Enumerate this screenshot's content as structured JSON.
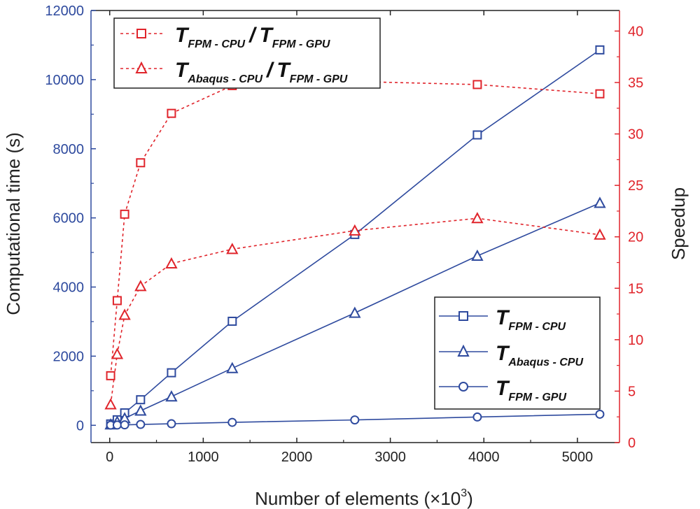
{
  "chart_data": {
    "type": "line",
    "xlabel": "Number of elements (×10",
    "xlabel_sup": "3",
    "xlabel_close": ")",
    "ylabel_left": "Computational time (s)",
    "ylabel_right": "Speedup",
    "xlim": [
      -200,
      5450
    ],
    "ylim_left": [
      -500,
      12000
    ],
    "ylim_right": [
      0,
      42
    ],
    "x_ticks": [
      0,
      1000,
      2000,
      3000,
      4000,
      5000
    ],
    "x_tick_labels": [
      "0",
      "1000",
      "2000",
      "3000",
      "4000",
      "5000"
    ],
    "y_left_ticks": [
      0,
      2000,
      4000,
      6000,
      8000,
      10000,
      12000
    ],
    "y_left_tick_labels": [
      "0",
      "2000",
      "4000",
      "6000",
      "8000",
      "10000",
      "12000"
    ],
    "y_right_ticks": [
      0,
      5,
      10,
      15,
      20,
      25,
      30,
      35,
      40
    ],
    "y_right_tick_labels": [
      "0",
      "5",
      "10",
      "15",
      "20",
      "25",
      "30",
      "35",
      "40"
    ],
    "colors": {
      "time": "#2e4a9e",
      "speedup": "#e0242b",
      "axis_left": "#2e4a9e",
      "axis_right": "#e0242b",
      "axis_bottom": "#222222"
    },
    "series": [
      {
        "name": "T FPM - CPU",
        "legend_main": "T",
        "legend_sub": "FPM - CPU",
        "axis": "left",
        "marker": "square",
        "style": "solid",
        "x": [
          10,
          80,
          160,
          330,
          660,
          1310,
          2620,
          3930,
          5240
        ],
        "y": [
          40,
          160,
          360,
          740,
          1520,
          3010,
          5520,
          8400,
          10860
        ]
      },
      {
        "name": "T Abaqus - CPU",
        "legend_main": "T",
        "legend_sub": "Abaqus - CPU",
        "axis": "left",
        "marker": "triangle",
        "style": "solid",
        "x": [
          10,
          80,
          160,
          330,
          660,
          1310,
          2620,
          3930,
          5240
        ],
        "y": [
          20,
          100,
          200,
          420,
          830,
          1650,
          3250,
          4900,
          6430
        ]
      },
      {
        "name": "T FPM - GPU",
        "legend_main": "T",
        "legend_sub": "FPM - GPU",
        "axis": "left",
        "marker": "circle",
        "style": "solid",
        "x": [
          10,
          80,
          160,
          330,
          660,
          1310,
          2620,
          3930,
          5240
        ],
        "y": [
          5,
          8,
          12,
          25,
          45,
          85,
          155,
          240,
          320
        ]
      },
      {
        "name": "T FPM - CPU / T FPM - GPU",
        "legend_main_a": "T",
        "legend_sub_a": "FPM - CPU",
        "legend_slash": "/",
        "legend_main_b": "T",
        "legend_sub_b": "FPM - GPU",
        "axis": "right",
        "marker": "square",
        "style": "dashed",
        "x": [
          10,
          80,
          160,
          330,
          660,
          1310,
          2620,
          3930,
          5240
        ],
        "y": [
          6.5,
          13.8,
          22.2,
          27.2,
          32.0,
          34.7,
          35.1,
          34.8,
          33.9
        ]
      },
      {
        "name": "T Abaqus - CPU / T FPM - GPU",
        "legend_main_a": "T",
        "legend_sub_a": "Abaqus - CPU",
        "legend_slash": "/",
        "legend_main_b": "T",
        "legend_sub_b": "FPM - GPU",
        "axis": "right",
        "marker": "triangle",
        "style": "dashed",
        "x": [
          10,
          80,
          160,
          330,
          660,
          1310,
          2620,
          3930,
          5240
        ],
        "y": [
          3.7,
          8.6,
          12.4,
          15.2,
          17.4,
          18.8,
          20.6,
          21.8,
          20.2
        ]
      }
    ]
  }
}
